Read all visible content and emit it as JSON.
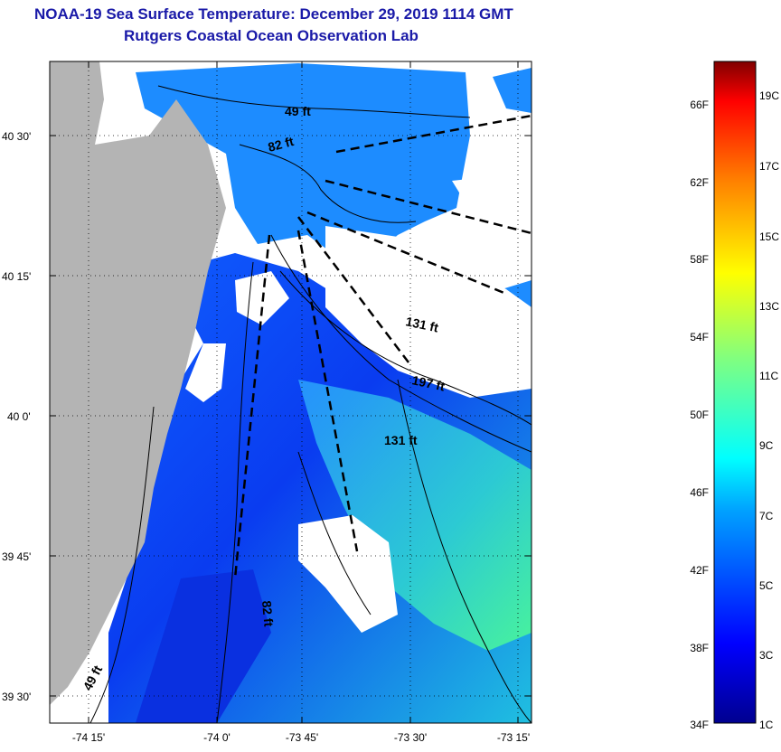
{
  "header": {
    "title": "NOAA-19 Sea Surface Temperature:  December 29, 2019 1114 GMT",
    "subtitle": "Rutgers Coastal Ocean Observation Lab"
  },
  "map": {
    "lat_labels": [
      "40 30'",
      "40 15'",
      "40 0'",
      "39 45'",
      "39 30'"
    ],
    "lon_labels": [
      "-74 15'",
      "-74 0'",
      "-73 45'",
      "-73 30'",
      "-73 15'"
    ],
    "depth_labels": [
      "49 ft",
      "82 ft",
      "131 ft",
      "197 ft",
      "131 ft",
      "82 ft",
      "49 ft"
    ],
    "colors": {
      "land": "#b4b4b4",
      "cloud": "#ffffff"
    }
  },
  "colorbar": {
    "f_labels": [
      "66F",
      "62F",
      "58F",
      "54F",
      "50F",
      "46F",
      "42F",
      "38F",
      "34F"
    ],
    "c_labels": [
      "19C",
      "17C",
      "15C",
      "13C",
      "11C",
      "9C",
      "7C",
      "5C",
      "3C",
      "1C"
    ]
  }
}
